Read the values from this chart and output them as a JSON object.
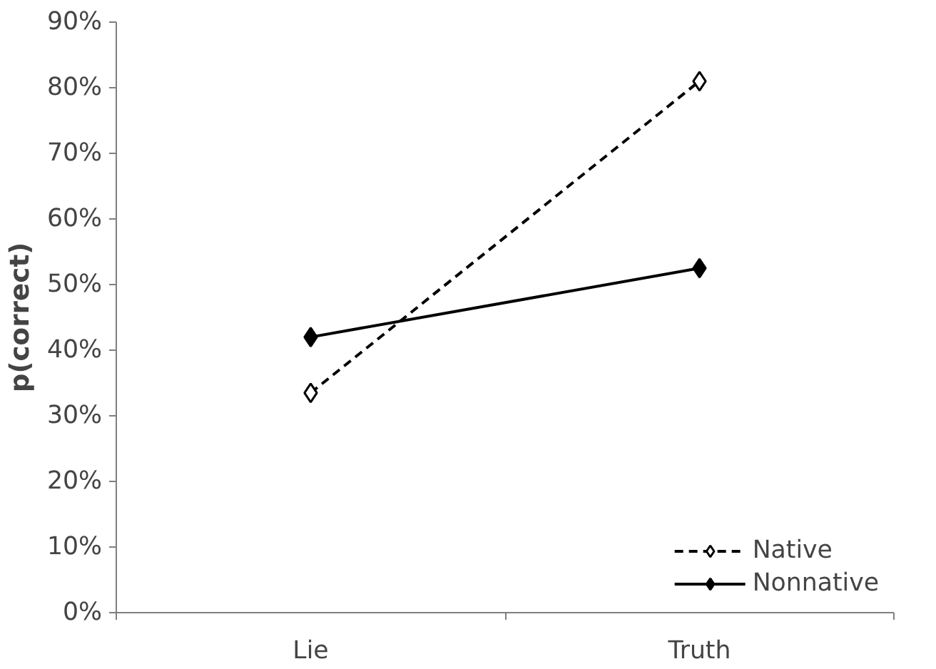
{
  "chart_data": {
    "type": "line",
    "ylabel": "p(correct)",
    "categories": [
      "Lie",
      "Truth"
    ],
    "series": [
      {
        "name": "Native",
        "color": "#000000",
        "values": [
          33.5,
          81
        ],
        "line_style": "dashed"
      },
      {
        "name": "Nonnative",
        "color": "#000000",
        "values": [
          42,
          52.5
        ],
        "line_style": "solid"
      }
    ],
    "ylim": [
      0,
      90
    ],
    "yticks": [
      {
        "value": 0,
        "label": "0%"
      },
      {
        "value": 10,
        "label": "10%"
      },
      {
        "value": 20,
        "label": "20%"
      },
      {
        "value": 30,
        "label": "30%"
      },
      {
        "value": 40,
        "label": "40%"
      },
      {
        "value": 50,
        "label": "50%"
      },
      {
        "value": 60,
        "label": "60%"
      },
      {
        "value": 70,
        "label": "70%"
      },
      {
        "value": 80,
        "label": "80%"
      },
      {
        "value": 90,
        "label": "90%"
      }
    ],
    "marker": "diamond",
    "grid": false,
    "legend": "bottom right"
  }
}
